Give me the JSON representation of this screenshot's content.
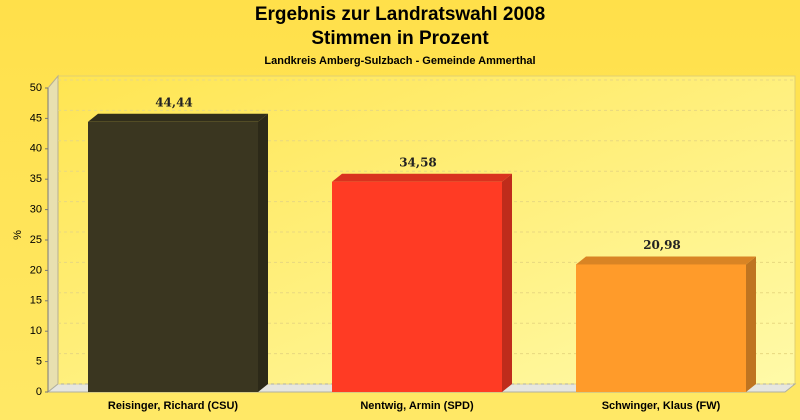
{
  "chart_data": {
    "type": "bar3d",
    "title": [
      "Ergebnis zur Landratswahl 2008",
      "Stimmen in Prozent"
    ],
    "subtitle": "Landkreis Amberg-Sulzbach - Gemeinde Ammerthal",
    "y_label": "%",
    "categories": [
      "Reisinger, Richard (CSU)",
      "Nentwig, Armin (SPD)",
      "Schwinger, Klaus (FW)"
    ],
    "values": [
      44.44,
      34.58,
      20.98
    ],
    "value_labels": [
      "44,44",
      "34,58",
      "20,98"
    ],
    "colors": [
      "#3a3620",
      "#ff3b24",
      "#ff9b2a"
    ],
    "ylim": [
      0,
      50
    ],
    "yticks": [
      0,
      5,
      10,
      15,
      20,
      25,
      30,
      35,
      40,
      45,
      50
    ],
    "grid": true
  }
}
